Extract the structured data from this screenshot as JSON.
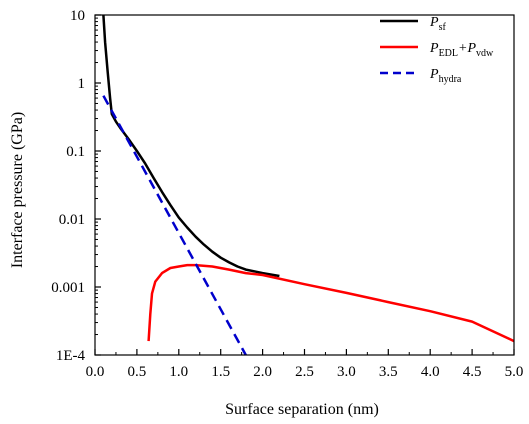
{
  "chart_data": {
    "type": "line",
    "xlabel": "Surface separation (nm)",
    "ylabel": "Interface pressure  (GPa)",
    "xlim": [
      0.0,
      5.0
    ],
    "ylim": [
      0.0001,
      10
    ],
    "yscale": "log",
    "x_ticks": [
      "0.0",
      "0.5",
      "1.0",
      "1.5",
      "2.0",
      "2.5",
      "3.0",
      "3.5",
      "4.0",
      "4.5",
      "5.0"
    ],
    "y_ticks": [
      "1E-4",
      "0.001",
      "0.01",
      "0.1",
      "1",
      "10"
    ],
    "legend_position": "top-right",
    "series": [
      {
        "name": "P_sf",
        "legend_main": "P",
        "legend_sub": "sf",
        "color": "#000000",
        "style": "solid",
        "points": [
          [
            0.1,
            10
          ],
          [
            0.12,
            4.0
          ],
          [
            0.15,
            1.5
          ],
          [
            0.18,
            0.6
          ],
          [
            0.2,
            0.35
          ],
          [
            0.25,
            0.27
          ],
          [
            0.3,
            0.22
          ],
          [
            0.4,
            0.15
          ],
          [
            0.5,
            0.1
          ],
          [
            0.6,
            0.065
          ],
          [
            0.7,
            0.04
          ],
          [
            0.8,
            0.025
          ],
          [
            0.9,
            0.016
          ],
          [
            1.0,
            0.0105
          ],
          [
            1.1,
            0.0075
          ],
          [
            1.2,
            0.0055
          ],
          [
            1.3,
            0.0042
          ],
          [
            1.4,
            0.0033
          ],
          [
            1.5,
            0.0027
          ],
          [
            1.6,
            0.0023
          ],
          [
            1.7,
            0.002
          ],
          [
            1.8,
            0.0018
          ],
          [
            1.9,
            0.0017
          ],
          [
            2.0,
            0.0016
          ],
          [
            2.2,
            0.00145
          ]
        ]
      },
      {
        "name": "P_EDL+P_vdw",
        "legend_main": [
          "P",
          "+P"
        ],
        "legend_sub": [
          "EDL",
          "vdw"
        ],
        "color": "#ff0000",
        "style": "solid",
        "points": [
          [
            0.64,
            0.00016
          ],
          [
            0.66,
            0.0004
          ],
          [
            0.68,
            0.0008
          ],
          [
            0.72,
            0.0012
          ],
          [
            0.8,
            0.0016
          ],
          [
            0.9,
            0.0019
          ],
          [
            1.0,
            0.002
          ],
          [
            1.1,
            0.0021
          ],
          [
            1.2,
            0.0021
          ],
          [
            1.4,
            0.002
          ],
          [
            1.6,
            0.0018
          ],
          [
            1.8,
            0.0016
          ],
          [
            2.0,
            0.0015
          ],
          [
            2.5,
            0.0011
          ],
          [
            3.0,
            0.00082
          ],
          [
            3.5,
            0.0006
          ],
          [
            4.0,
            0.00044
          ],
          [
            4.5,
            0.00031
          ],
          [
            5.0,
            0.00016
          ]
        ]
      },
      {
        "name": "P_hydra",
        "legend_main": "P",
        "legend_sub": "hydra",
        "color": "#0000cc",
        "style": "dashed",
        "points": [
          [
            0.1,
            0.65
          ],
          [
            1.8,
            0.0001
          ]
        ]
      }
    ]
  }
}
